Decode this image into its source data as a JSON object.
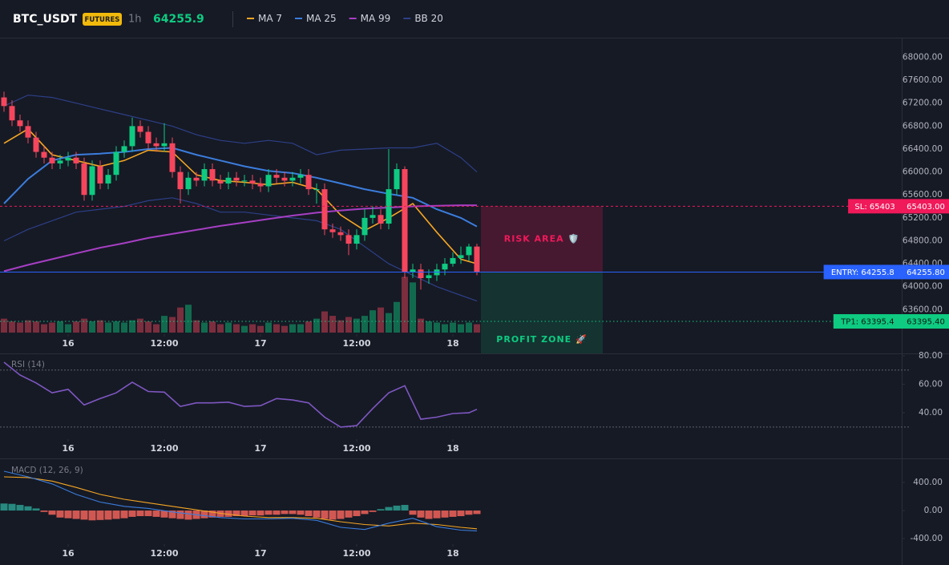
{
  "header": {
    "symbol": "BTC_USDT",
    "badge": "FUTURES",
    "interval": "1h",
    "last_price": 64255.9,
    "price_color": "#0ecb81"
  },
  "chart_data": [
    {
      "type": "candlestick",
      "up_color": "#0ecb81",
      "down_color": "#f6465d",
      "xlim": [
        -0.5,
        112
      ],
      "xticks": [
        {
          "value": 8,
          "label": "16"
        },
        {
          "value": 20,
          "label": "12:00"
        },
        {
          "value": 32,
          "label": "17"
        },
        {
          "value": 44,
          "label": "12:00"
        },
        {
          "value": 56,
          "label": "18"
        }
      ],
      "ylim": [
        63200,
        68300
      ],
      "yticks": [
        {
          "value": 63600,
          "label": "63600.00"
        },
        {
          "value": 64000,
          "label": "64000.00"
        },
        {
          "value": 64400,
          "label": "64400.00"
        },
        {
          "value": 64800,
          "label": "64800.00"
        },
        {
          "value": 65200,
          "label": "65200.00"
        },
        {
          "value": 65600,
          "label": "65600.00"
        },
        {
          "value": 66000,
          "label": "66000.00"
        },
        {
          "value": 66400,
          "label": "66400.00"
        },
        {
          "value": 66800,
          "label": "66800.00"
        },
        {
          "value": 67200,
          "label": "67200.00"
        },
        {
          "value": 67600,
          "label": "67600.00"
        },
        {
          "value": 68000,
          "label": "68000.00"
        }
      ],
      "open": [
        67300,
        67150,
        66900,
        66800,
        66600,
        66350,
        66250,
        66150,
        66200,
        66250,
        66150,
        65600,
        66100,
        65800,
        65950,
        66350,
        66450,
        66800,
        66700,
        66500,
        66450,
        66500,
        66000,
        65700,
        65900,
        65850,
        66050,
        65850,
        65800,
        65900,
        65850,
        65850,
        65800,
        65750,
        65950,
        65900,
        65850,
        65900,
        65950,
        65700,
        65700,
        65000,
        64950,
        64900,
        64750,
        64900,
        65200,
        65250,
        65100,
        65700,
        66050,
        64250,
        64300,
        64150,
        64200,
        64300,
        64400,
        64500,
        64550,
        64700
      ],
      "high": [
        67400,
        67250,
        67000,
        66900,
        66700,
        66450,
        66350,
        66300,
        66350,
        66350,
        66250,
        66200,
        66200,
        66050,
        66450,
        66550,
        66950,
        66900,
        66800,
        66600,
        66850,
        66600,
        66100,
        66000,
        66000,
        66150,
        66150,
        65950,
        66000,
        66000,
        65950,
        65950,
        65900,
        66050,
        66050,
        66000,
        66000,
        66050,
        66050,
        65800,
        65800,
        65100,
        65050,
        65000,
        65000,
        65350,
        65400,
        65350,
        66400,
        66150,
        66100,
        64400,
        64400,
        64300,
        64400,
        64500,
        64600,
        64700,
        64750,
        64750
      ],
      "low": [
        67050,
        66800,
        66700,
        66500,
        66250,
        66150,
        66050,
        66050,
        66100,
        66050,
        65500,
        65500,
        65700,
        65700,
        65850,
        66250,
        66350,
        66600,
        66400,
        66350,
        66350,
        65900,
        65450,
        65600,
        65750,
        65750,
        65750,
        65700,
        65700,
        65750,
        65750,
        65700,
        65650,
        65650,
        65800,
        65750,
        65750,
        65800,
        65600,
        65450,
        64900,
        64850,
        64800,
        64550,
        64650,
        64800,
        65100,
        65000,
        65000,
        65600,
        64150,
        64150,
        63950,
        64050,
        64100,
        64200,
        64350,
        64400,
        64450,
        64200
      ],
      "close": [
        67150,
        66900,
        66800,
        66600,
        66350,
        66250,
        66150,
        66200,
        66250,
        66150,
        65600,
        66100,
        65800,
        65950,
        66350,
        66450,
        66800,
        66700,
        66500,
        66450,
        66500,
        66000,
        65700,
        65900,
        65850,
        66050,
        65850,
        65800,
        65900,
        65850,
        65850,
        65800,
        65750,
        65950,
        65900,
        65850,
        65900,
        65950,
        65700,
        65700,
        65000,
        64950,
        64900,
        64750,
        64900,
        65200,
        65250,
        65100,
        65700,
        66050,
        64250,
        64300,
        64150,
        64200,
        64300,
        64400,
        64500,
        64550,
        64700,
        64255.9
      ],
      "volume": [
        25,
        20,
        18,
        22,
        20,
        15,
        18,
        20,
        15,
        20,
        25,
        20,
        22,
        18,
        20,
        18,
        22,
        25,
        20,
        15,
        30,
        28,
        45,
        50,
        22,
        18,
        20,
        15,
        18,
        15,
        12,
        15,
        12,
        18,
        15,
        12,
        15,
        15,
        20,
        25,
        38,
        30,
        22,
        28,
        25,
        30,
        40,
        45,
        35,
        55,
        100,
        90,
        25,
        20,
        18,
        15,
        18,
        15,
        18,
        15
      ],
      "vlim": [
        0,
        115
      ],
      "overlay_x": [
        0,
        3,
        6,
        9,
        12,
        15,
        18,
        21,
        24,
        27,
        30,
        33,
        36,
        39,
        42,
        45,
        48,
        51,
        54,
        57,
        59
      ],
      "overlays": [
        {
          "name": "MA 7",
          "color": "#f5a623",
          "values": [
            66500,
            66750,
            66300,
            66200,
            66100,
            66200,
            66380,
            66350,
            65950,
            65850,
            65820,
            65780,
            65820,
            65700,
            65250,
            64980,
            65200,
            65450,
            64950,
            64480,
            64400
          ]
        },
        {
          "name": "MA 25",
          "color": "#3b7ddd",
          "values": [
            65450,
            65880,
            66200,
            66300,
            66320,
            66350,
            66400,
            66420,
            66300,
            66200,
            66100,
            66020,
            65980,
            65900,
            65800,
            65700,
            65620,
            65550,
            65350,
            65200,
            65050
          ]
        },
        {
          "name": "MA 99",
          "color": "#a73fc4",
          "values": [
            64270,
            64380,
            64480,
            64580,
            64680,
            64760,
            64850,
            64920,
            64990,
            65060,
            65120,
            65180,
            65240,
            65290,
            65330,
            65360,
            65380,
            65400,
            65410,
            65420,
            65420
          ]
        },
        {
          "name": "BB 20",
          "color": "#2d3f86",
          "upper": [
            67150,
            67340,
            67300,
            67200,
            67100,
            67000,
            66900,
            66800,
            66650,
            66550,
            66500,
            66550,
            66500,
            66300,
            66380,
            66400,
            66420,
            66420,
            66500,
            66250,
            66000
          ],
          "lower": [
            64800,
            65000,
            65150,
            65300,
            65350,
            65400,
            65500,
            65550,
            65450,
            65300,
            65300,
            65250,
            65200,
            65150,
            65000,
            64700,
            64400,
            64200,
            64000,
            63850,
            63750
          ]
        }
      ],
      "levels": [
        {
          "label": "SL: 65403",
          "axis_label": "65403.00",
          "value": 65403,
          "color": "#f0195a",
          "style": "dashed"
        },
        {
          "label": "ENTRY: 64255.8",
          "axis_label": "64255.80",
          "value": 64255.8,
          "color": "#2962ff",
          "style": "solid"
        },
        {
          "label": "TP1: 63395.4",
          "axis_label": "63395.40",
          "value": 63395.4,
          "color": "#0ecb81",
          "style": "dotted"
        }
      ],
      "zones": [
        {
          "label": "RISK AREA 🛡️",
          "color": "#f0195a"
        },
        {
          "label": "PROFIT ZONE 🚀",
          "color": "#0ecb81"
        }
      ]
    },
    {
      "type": "line",
      "title": "RSI (14)",
      "color": "#7e57c2",
      "xlim": [
        -0.5,
        112
      ],
      "xticks": [
        {
          "value": 8,
          "label": "16"
        },
        {
          "value": 20,
          "label": "12:00"
        },
        {
          "value": 32,
          "label": "17"
        },
        {
          "value": 44,
          "label": "12:00"
        },
        {
          "value": 56,
          "label": "18"
        }
      ],
      "ylim": [
        21.5,
        81.7
      ],
      "yticks": [
        {
          "value": 40,
          "label": "40.00"
        },
        {
          "value": 60,
          "label": "60.00"
        },
        {
          "value": 80,
          "label": "80.00"
        }
      ],
      "bands": [
        70,
        30
      ],
      "x": [
        0,
        2,
        4,
        6,
        8,
        10,
        12,
        14,
        16,
        18,
        20,
        22,
        24,
        26,
        28,
        30,
        32,
        34,
        36,
        38,
        40,
        42,
        44,
        46,
        48,
        50,
        52,
        54,
        56,
        58,
        59
      ],
      "values": [
        75.5,
        66.5,
        61,
        54,
        56.5,
        45.5,
        50,
        54,
        61.5,
        55,
        54.5,
        44.5,
        47,
        47,
        47.5,
        44.5,
        45,
        50,
        49,
        47,
        37,
        30,
        31,
        43,
        54,
        59,
        35.5,
        37,
        39.5,
        40,
        42.5
      ]
    },
    {
      "type": "macd",
      "title": "MACD (12, 26, 9)",
      "xlim": [
        -0.5,
        112
      ],
      "xticks": [
        {
          "value": 8,
          "label": "16"
        },
        {
          "value": 20,
          "label": "12:00"
        },
        {
          "value": 32,
          "label": "17"
        },
        {
          "value": 44,
          "label": "12:00"
        },
        {
          "value": 56,
          "label": "18"
        }
      ],
      "ylim": [
        -514,
        709
      ],
      "yticks": [
        {
          "value": -400,
          "label": "-400.00"
        },
        {
          "value": 0,
          "label": "0.00"
        },
        {
          "value": 400,
          "label": "400.00"
        }
      ],
      "up_color": "#2a9d8f",
      "down_color": "#f2645a",
      "histogram": [
        100,
        95,
        80,
        60,
        30,
        -20,
        -60,
        -100,
        -110,
        -120,
        -130,
        -140,
        -135,
        -130,
        -120,
        -110,
        -90,
        -80,
        -80,
        -90,
        -100,
        -110,
        -120,
        -130,
        -120,
        -110,
        -100,
        -90,
        -90,
        -80,
        -80,
        -70,
        -70,
        -60,
        -60,
        -50,
        -50,
        -60,
        -80,
        -100,
        -120,
        -130,
        -120,
        -100,
        -80,
        -50,
        -20,
        20,
        50,
        70,
        80,
        -60,
        -100,
        -120,
        -110,
        -100,
        -90,
        -80,
        -60,
        -50
      ],
      "x": [
        0,
        3,
        6,
        9,
        12,
        15,
        18,
        21,
        24,
        27,
        30,
        33,
        36,
        39,
        42,
        45,
        48,
        51,
        54,
        57,
        59
      ],
      "macd_line": {
        "color": "#3b7ddd",
        "values": [
          560,
          480,
          380,
          230,
          120,
          60,
          30,
          -20,
          -60,
          -100,
          -120,
          -120,
          -110,
          -140,
          -240,
          -270,
          -180,
          -110,
          -230,
          -280,
          -290
        ]
      },
      "signal_line": {
        "color": "#f5a623",
        "values": [
          480,
          470,
          420,
          330,
          230,
          160,
          110,
          60,
          10,
          -40,
          -80,
          -100,
          -100,
          -110,
          -160,
          -200,
          -220,
          -180,
          -200,
          -240,
          -260
        ]
      }
    }
  ]
}
